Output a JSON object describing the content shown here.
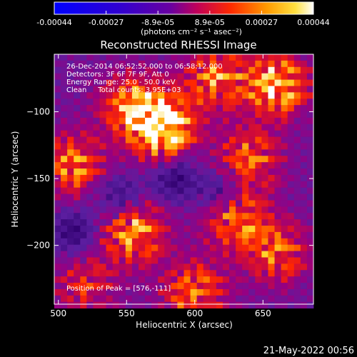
{
  "chart_data": {
    "type": "heatmap",
    "title": "Reconstructed RHESSI Image",
    "xlabel": "Heliocentric X (arcsec)",
    "ylabel": "Heliocentric Y (arcsec)",
    "xlim": [
      497,
      687
    ],
    "ylim": [
      -244,
      -57
    ],
    "x_ticks": [
      500,
      550,
      600,
      650
    ],
    "y_ticks": [
      -100,
      -150,
      -200
    ],
    "grid": false,
    "colorbar": {
      "ticks": [
        "-0.00044",
        "-0.00027",
        "-8.9e-05",
        "8.9e-05",
        "0.00027",
        "0.00044"
      ],
      "unit_label": "(photons cm⁻² s⁻¹ asec⁻²)",
      "min": -0.00044,
      "max": 0.00044,
      "colors": [
        "#0000ff",
        "#5500aa",
        "#ffffff"
      ]
    },
    "annotations": {
      "line1": "26-Dec-2014 06:52:52.000 to 06:58:12.000",
      "line2": "Detectors: 3F 6F 7F 9F, Att 0",
      "line3": "Energy Range: 25.0 - 50.0 keV",
      "line4": "Clean     Total counts: 3.95E+03",
      "peak": "Position of Peak = [576,-111]"
    },
    "peak": {
      "x": 576,
      "y": -111
    },
    "bright_sources": [
      {
        "x": 576,
        "y": -111,
        "amp": 1.0
      },
      {
        "x": 553,
        "y": -95,
        "amp": 0.55
      },
      {
        "x": 660,
        "y": -80,
        "amp": 0.75
      },
      {
        "x": 615,
        "y": -75,
        "amp": 0.55
      },
      {
        "x": 640,
        "y": -135,
        "amp": 0.5
      },
      {
        "x": 510,
        "y": -140,
        "amp": 0.55
      },
      {
        "x": 555,
        "y": -190,
        "amp": 0.65
      },
      {
        "x": 630,
        "y": -180,
        "amp": 0.55
      },
      {
        "x": 660,
        "y": -205,
        "amp": 0.5
      },
      {
        "x": 600,
        "y": -235,
        "amp": 0.55
      },
      {
        "x": 520,
        "y": -230,
        "amp": 0.35
      }
    ],
    "dark_regions": [
      {
        "x": 585,
        "y": -150
      },
      {
        "x": 512,
        "y": -190
      },
      {
        "x": 545,
        "y": -165
      },
      {
        "x": 620,
        "y": -160
      }
    ]
  },
  "footer": {
    "timestamp": "21-May-2022 00:56"
  }
}
